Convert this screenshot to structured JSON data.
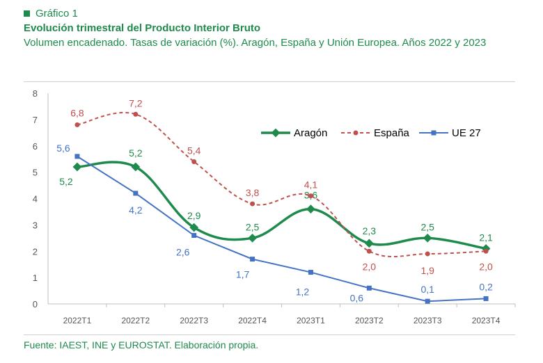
{
  "header": {
    "label": "Gráfico 1",
    "title": "Evolución trimestral del Producto Interior Bruto",
    "subtitle": "Volumen encadenado. Tasas de variación (%). Aragón, España y Unión Europea. Años 2022 y 2023"
  },
  "footer": {
    "source": "Fuente: IAEST, INE y EUROSTAT. Elaboración propia."
  },
  "colors": {
    "accent": "#1e8a4c",
    "aragon": "#1e8a4c",
    "espana": "#c0504d",
    "ue27": "#4472c4"
  },
  "chart_data": {
    "type": "line",
    "categories": [
      "2022T1",
      "2022T2",
      "2022T3",
      "2022T4",
      "2023T1",
      "2023T2",
      "2023T3",
      "2023T4"
    ],
    "ylim": [
      0,
      8
    ],
    "yticks": [
      "0",
      "1",
      "2",
      "3",
      "4",
      "5",
      "6",
      "7",
      "8"
    ],
    "legend_position": "top-right",
    "series": [
      {
        "name": "Aragón",
        "values": [
          5.2,
          5.2,
          2.9,
          2.5,
          3.6,
          2.3,
          2.5,
          2.1
        ],
        "labels": [
          "5,2",
          "5,2",
          "2,9",
          "2,5",
          "3,6",
          "2,3",
          "2,5",
          "2,1"
        ],
        "color": "#1e8a4c",
        "style": "solid-diamond"
      },
      {
        "name": "España",
        "values": [
          6.8,
          7.2,
          5.4,
          3.8,
          4.1,
          2.0,
          1.9,
          2.0
        ],
        "labels": [
          "6,8",
          "7,2",
          "5,4",
          "3,8",
          "4,1",
          "2,0",
          "1,9",
          "2,0"
        ],
        "color": "#c0504d",
        "style": "dashed-circle"
      },
      {
        "name": "UE 27",
        "values": [
          5.6,
          4.2,
          2.6,
          1.7,
          1.2,
          0.6,
          0.1,
          0.2
        ],
        "labels": [
          "5,6",
          "4,2",
          "2,6",
          "1,7",
          "1,2",
          "0,6",
          "0,1",
          "0,2"
        ],
        "color": "#4472c4",
        "style": "solid-square"
      }
    ]
  }
}
